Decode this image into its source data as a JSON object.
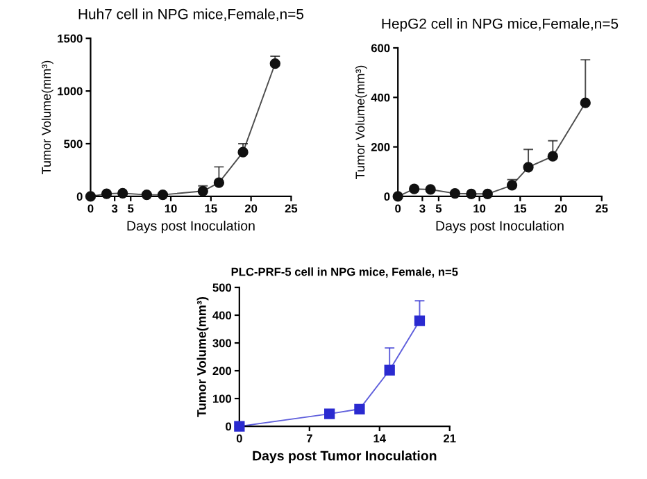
{
  "chart_data": [
    {
      "type": "line",
      "title": "Huh7 cell in NPG mice,Female,n=5",
      "xlabel": "Days post Inoculation",
      "ylabel": "Tumor Volume(mm³)",
      "xlim": [
        0,
        25
      ],
      "xticks": [
        0,
        3,
        5,
        10,
        15,
        20,
        25
      ],
      "ylim": [
        0,
        1500
      ],
      "yticks": [
        0,
        500,
        1000,
        1500
      ],
      "marker": "circle",
      "grid": false,
      "legend": false,
      "series": [
        {
          "color": "#111111",
          "x": [
            0,
            2,
            4,
            7,
            9,
            14,
            16,
            19,
            23
          ],
          "values": [
            0,
            25,
            30,
            15,
            15,
            50,
            130,
            420,
            1260
          ],
          "errors": [
            null,
            null,
            null,
            null,
            null,
            [
              50,
              100
            ],
            [
              130,
              280
            ],
            [
              420,
              500
            ],
            [
              1260,
              1330
            ]
          ]
        }
      ]
    },
    {
      "type": "line",
      "title": "HepG2 cell in NPG mice,Female,n=5",
      "xlabel": "Days post Inoculation",
      "ylabel": "Tumor Volume(mm³)",
      "xlim": [
        0,
        25
      ],
      "xticks": [
        0,
        3,
        5,
        10,
        15,
        20,
        25
      ],
      "ylim": [
        0,
        600
      ],
      "yticks": [
        0,
        200,
        400,
        600
      ],
      "marker": "circle",
      "grid": false,
      "legend": false,
      "series": [
        {
          "color": "#111111",
          "x": [
            0,
            2,
            4,
            7,
            9,
            11,
            14,
            16,
            19,
            23
          ],
          "values": [
            0,
            30,
            28,
            12,
            10,
            10,
            45,
            118,
            162,
            378
          ],
          "errors": [
            null,
            null,
            null,
            null,
            null,
            null,
            [
              45,
              68
            ],
            [
              118,
              190
            ],
            [
              162,
              225
            ],
            [
              378,
              552
            ]
          ]
        }
      ]
    },
    {
      "type": "line",
      "title": "PLC-PRF-5 cell in NPG mice, Female, n=5",
      "xlabel": "Days post Tumor Inoculation",
      "ylabel": "Tumor Volume(mm³)",
      "xlim": [
        0,
        21
      ],
      "xticks": [
        0,
        7,
        14,
        21
      ],
      "ylim": [
        0,
        500
      ],
      "yticks": [
        0,
        100,
        200,
        300,
        400,
        500
      ],
      "marker": "square",
      "grid": false,
      "legend": false,
      "series": [
        {
          "color": "#2a2ad0",
          "x": [
            0,
            9,
            12,
            15,
            18
          ],
          "values": [
            0,
            45,
            62,
            202,
            380
          ],
          "errors": [
            null,
            [
              45,
              50
            ],
            [
              62,
              66
            ],
            [
              202,
              282
            ],
            [
              380,
              452
            ]
          ]
        }
      ]
    }
  ]
}
